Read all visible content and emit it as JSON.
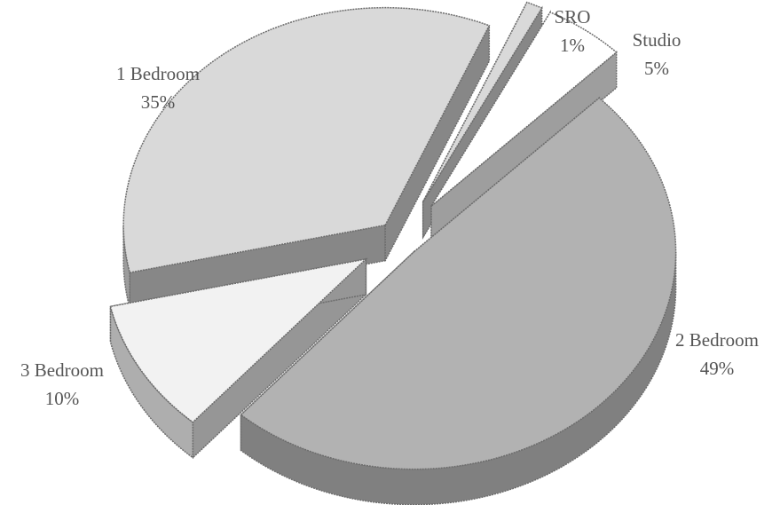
{
  "chart_data": {
    "type": "pie",
    "title": "",
    "start_angle_deg": -66.6,
    "labels": [
      "SRO",
      "Studio",
      "2 Bedroom",
      "3 Bedroom",
      "1 Bedroom"
    ],
    "values": [
      1,
      5,
      49,
      10,
      35
    ],
    "value_labels": [
      "1%",
      "5%",
      "49%",
      "10%",
      "35%"
    ],
    "colors": {
      "SRO": "#d9d9d9",
      "Studio": "#ffffff",
      "2 Bedroom": "#b2b2b2",
      "3 Bedroom": "#f2f2f2",
      "1 Bedroom": "#d9d9d9"
    },
    "exploded": true,
    "perspective_3d": true,
    "legend": "none"
  }
}
